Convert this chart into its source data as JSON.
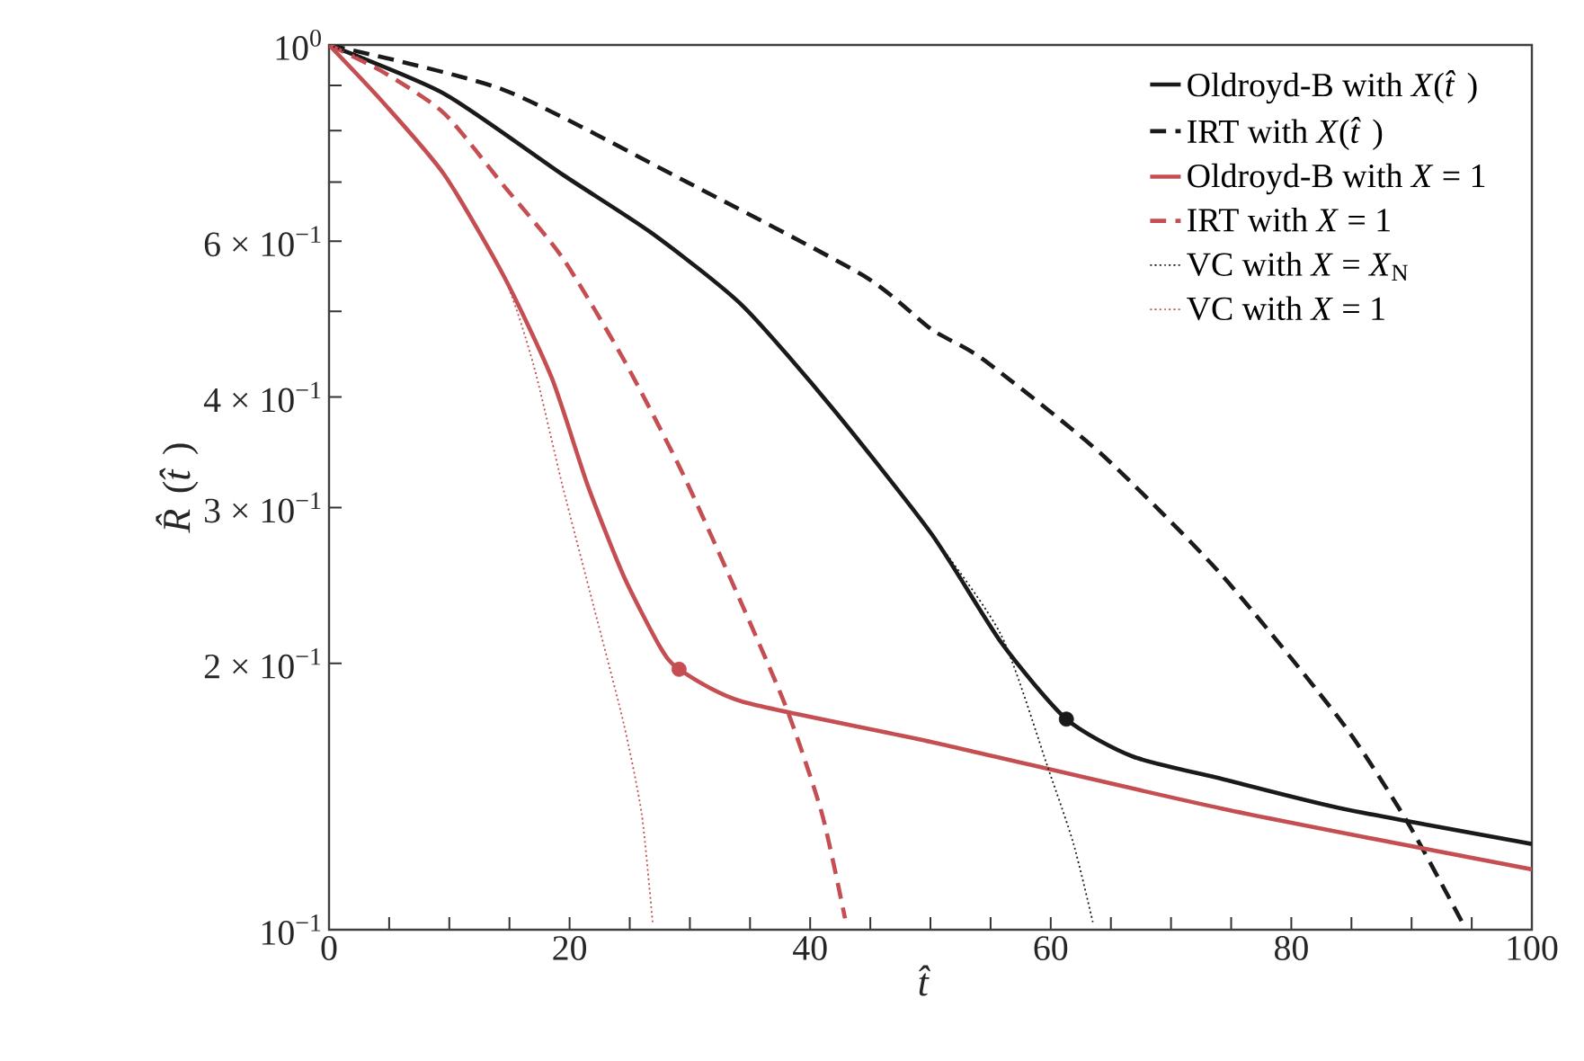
{
  "chart_data": {
    "type": "line",
    "xlabel": "*t̂*",
    "ylabel": "*R̂*(*t̂*)",
    "log": "y",
    "xlim": [
      0,
      100
    ],
    "ylim": [
      0.1,
      1
    ],
    "xticks": [
      0,
      {
        "value": 5,
        "label": null
      },
      {
        "value": 10,
        "label": null
      },
      {
        "value": 15,
        "label": null
      },
      20,
      {
        "value": 25,
        "label": null
      },
      {
        "value": 30,
        "label": null
      },
      {
        "value": 35,
        "label": null
      },
      40,
      {
        "value": 45,
        "label": null
      },
      {
        "value": 50,
        "label": null
      },
      {
        "value": 55,
        "label": null
      },
      60,
      {
        "value": 65,
        "label": null
      },
      {
        "value": 70,
        "label": null
      },
      {
        "value": 75,
        "label": null
      },
      80,
      {
        "value": 85,
        "label": null
      },
      {
        "value": 90,
        "label": null
      },
      {
        "value": 95,
        "label": null
      },
      100
    ],
    "yticks": [
      {
        "value": 0.1,
        "label": "10$^{−1}$"
      },
      {
        "value": 0.2,
        "label": "2 × 10$^{−1}$"
      },
      {
        "value": 0.3,
        "label": "3 × 10$^{−1}$"
      },
      {
        "value": 0.4,
        "label": "4 × 10$^{−1}$"
      },
      {
        "value": 0.5,
        "label": null
      },
      {
        "value": 0.6,
        "label": "6 × 10$^{−1}$"
      },
      {
        "value": 0.7,
        "label": null
      },
      {
        "value": 0.8,
        "label": null
      },
      {
        "value": 0.9,
        "label": null
      },
      {
        "value": 1,
        "label": "10$^{0}$"
      }
    ],
    "legend": "top right",
    "series": [
      {
        "name": "Oldroyd-B with *X*(*t̂*)",
        "color": "#1a1a1a",
        "line_style": "solid",
        "x": [
          0,
          9.57,
          19.4,
          26.9,
          34.4,
          41.9,
          50.1,
          55.9,
          61.3,
          66.8,
          74.3,
          84.3,
          100
        ],
        "values": [
          1,
          0.881,
          0.714,
          0.612,
          0.507,
          0.388,
          0.28,
          0.211,
          0.173,
          0.157,
          0.148,
          0.137,
          0.125
        ]
      },
      {
        "name": "IRT with *X*(*t̂*)",
        "color": "#1a1a1a",
        "line_style": "dashed",
        "x": [
          0,
          14.5,
          29.4,
          44.4,
          50.1,
          54.4,
          64.3,
          74.3,
          84.3,
          89.7,
          94.2
        ],
        "values": [
          1,
          0.89,
          0.704,
          0.549,
          0.477,
          0.441,
          0.344,
          0.251,
          0.171,
          0.132,
          0.102
        ]
      },
      {
        "name": "Oldroyd-B with *X* = 1",
        "color": "#c44e52",
        "line_style": "solid",
        "x": [
          0,
          4.5,
          9.57,
          14.5,
          18.5,
          21.5,
          24.5,
          27.5,
          29.1,
          34.4,
          50.1,
          74.3,
          100
        ],
        "values": [
          1,
          0.861,
          0.714,
          0.549,
          0.421,
          0.318,
          0.251,
          0.209,
          0.197,
          0.181,
          0.163,
          0.137,
          0.117
        ]
      },
      {
        "name": "IRT with *X* = 1",
        "color": "#c44e52",
        "line_style": "dashed",
        "x": [
          0,
          4.5,
          9.57,
          14.5,
          19.4,
          24.5,
          29.4,
          34.4,
          38.1,
          41.0,
          42.9
        ],
        "values": [
          1,
          0.932,
          0.837,
          0.694,
          0.575,
          0.441,
          0.328,
          0.232,
          0.177,
          0.135,
          0.103
        ]
      },
      {
        "name": "VC with *X* = *X*$_{N}$",
        "color": "#1a1a1a",
        "line_style": "dotted",
        "x": [
          0,
          9.57,
          19.4,
          26.9,
          34.4,
          41.9,
          50.1,
          55.9,
          59.8,
          61.9,
          63.5
        ],
        "values": [
          1,
          0.881,
          0.714,
          0.612,
          0.507,
          0.388,
          0.28,
          0.215,
          0.152,
          0.125,
          0.102
        ]
      },
      {
        "name": "VC with *X* = 1",
        "color": "#c44e52",
        "line_style": "dotted",
        "x": [
          0,
          4.5,
          9.57,
          14.5,
          17.0,
          19.4,
          22.0,
          24.5,
          26.0,
          26.9
        ],
        "values": [
          1,
          0.861,
          0.714,
          0.549,
          0.435,
          0.318,
          0.232,
          0.171,
          0.135,
          0.102
        ]
      },
      {
        "type": "scatter",
        "color": "#c44e52",
        "x": [
          29.1
        ],
        "values": [
          0.197
        ]
      },
      {
        "type": "scatter",
        "color": "#1a1a1a",
        "x": [
          61.3
        ],
        "values": [
          0.173
        ]
      }
    ]
  }
}
